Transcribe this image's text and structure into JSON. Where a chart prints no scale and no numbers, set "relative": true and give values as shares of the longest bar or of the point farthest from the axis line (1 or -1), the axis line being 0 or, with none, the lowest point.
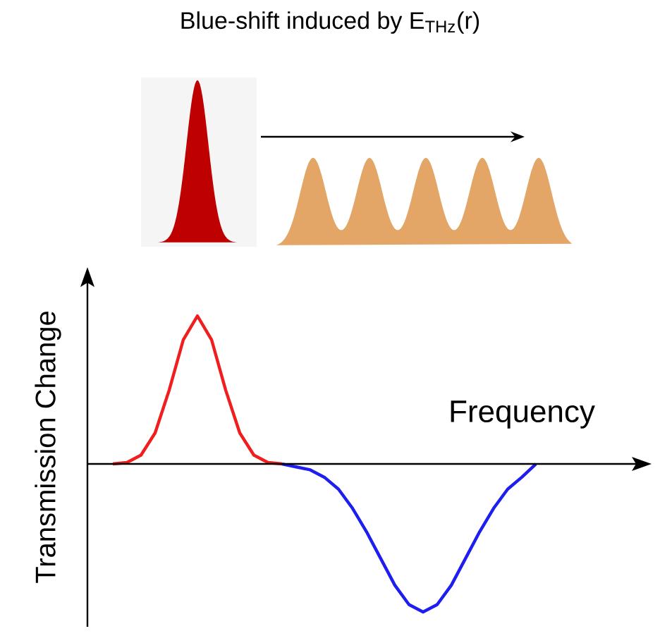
{
  "chart_data": {
    "type": "line",
    "relative": true,
    "title": "Blue-shift induced by E$_{THz}$(r)",
    "xlabel": "Frequency",
    "ylabel": "Transmission Change",
    "categories": [
      null,
      null,
      null,
      null,
      null,
      null,
      null,
      null,
      null,
      null,
      null,
      null,
      null,
      null,
      null,
      null,
      null,
      null,
      null,
      null,
      null,
      null,
      null,
      null,
      null,
      null,
      null,
      null,
      null,
      null,
      null
    ],
    "series": [
      {
        "color": "#f01e1e",
        "values": [
          0,
          0.01,
          0.06,
          0.21,
          0.5,
          0.84,
          1,
          0.84,
          0.5,
          0.21,
          0.06,
          0.01,
          0,
          null,
          null,
          null,
          null,
          null,
          null,
          null,
          null,
          null,
          null,
          null,
          null,
          null,
          null,
          null,
          null,
          null,
          null
        ]
      },
      {
        "color": "#1e1ef0",
        "values": [
          null,
          null,
          null,
          null,
          null,
          null,
          null,
          null,
          null,
          null,
          null,
          null,
          0,
          -0.02,
          -0.04,
          -0.09,
          -0.17,
          -0.3,
          -0.46,
          -0.64,
          -0.82,
          -0.95,
          -1,
          -0.95,
          -0.82,
          -0.64,
          -0.46,
          -0.3,
          -0.17,
          -0.09,
          0
        ]
      }
    ],
    "marker": "none",
    "line_style": "solid"
  }
}
